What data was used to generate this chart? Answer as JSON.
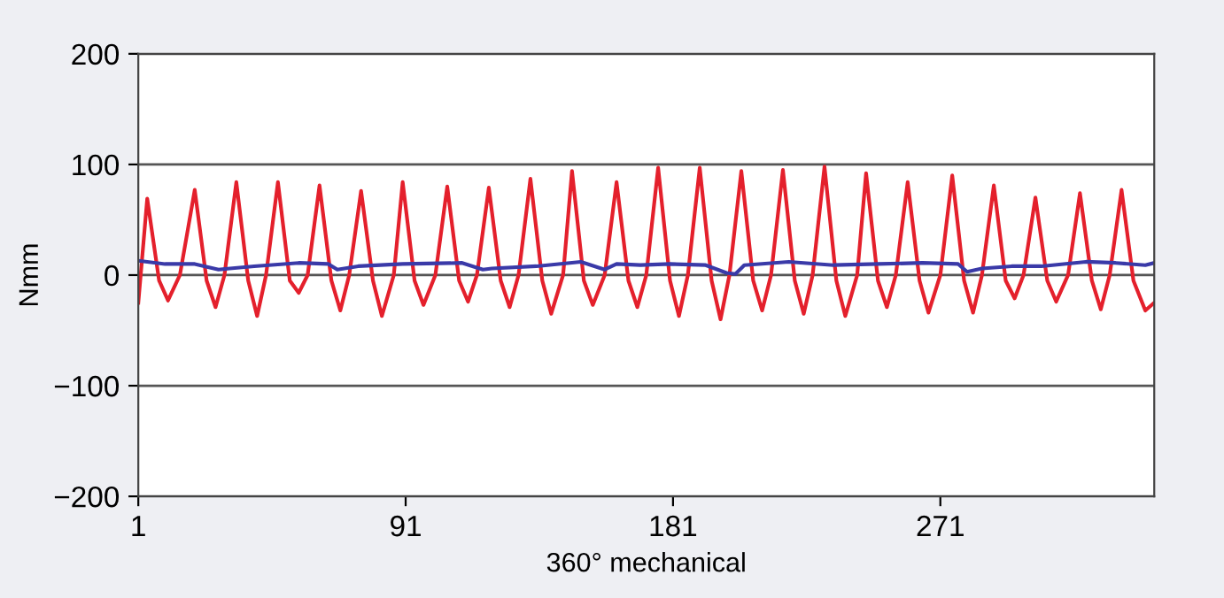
{
  "chart_data": {
    "type": "line",
    "xlabel": "360° mechanical",
    "ylabel": "Nmm",
    "xlim": [
      1,
      343
    ],
    "ylim": [
      -200,
      200
    ],
    "xticks": [
      1,
      91,
      181,
      271
    ],
    "yticks": [
      {
        "value": -200,
        "label": "−200"
      },
      {
        "value": -100,
        "label": "−100"
      },
      0,
      100,
      200
    ],
    "grid": "y",
    "marker": "none",
    "line_style": "solid",
    "series": [
      {
        "color": "#e4202c",
        "x": [
          1,
          4,
          8,
          11,
          15,
          20,
          24,
          27,
          30,
          34,
          38,
          41,
          44,
          48,
          52,
          55,
          58,
          62,
          66,
          69,
          72,
          76,
          80,
          83,
          87,
          90,
          94,
          97,
          101,
          105,
          109,
          112,
          115,
          119,
          123,
          126,
          129,
          133,
          137,
          140,
          144,
          147,
          151,
          154,
          158,
          162,
          166,
          169,
          172,
          176,
          180,
          183,
          186,
          190,
          194,
          197,
          200,
          204,
          208,
          211,
          214,
          218,
          222,
          225,
          228,
          232,
          236,
          239,
          243,
          246,
          250,
          253,
          256,
          260,
          264,
          267,
          271,
          275,
          279,
          282,
          285,
          289,
          293,
          296,
          299,
          303,
          307,
          310,
          314,
          318,
          322,
          325,
          328,
          332,
          336,
          340,
          343
        ],
        "values": [
          -25,
          69,
          -5,
          -23,
          0,
          77,
          -5,
          -29,
          0,
          84,
          -5,
          -37,
          0,
          84,
          -5,
          -16,
          0,
          81,
          -5,
          -32,
          0,
          76,
          -5,
          -37,
          0,
          84,
          -5,
          -27,
          0,
          80,
          -5,
          -24,
          0,
          79,
          -5,
          -29,
          0,
          87,
          -5,
          -35,
          0,
          94,
          -5,
          -27,
          0,
          84,
          -5,
          -29,
          0,
          97,
          -5,
          -37,
          0,
          97,
          -5,
          -40,
          0,
          94,
          -5,
          -32,
          0,
          95,
          -5,
          -35,
          0,
          98,
          -5,
          -37,
          0,
          92,
          -5,
          -29,
          0,
          84,
          -5,
          -34,
          0,
          90,
          -5,
          -34,
          0,
          81,
          -5,
          -21,
          0,
          70,
          -5,
          -24,
          0,
          74,
          -5,
          -31,
          0,
          77,
          -5,
          -32,
          -25
        ]
      },
      {
        "color": "#3a3aa8",
        "x": [
          1,
          10,
          20,
          28,
          40,
          55,
          65,
          68,
          75,
          90,
          110,
          117,
          120,
          135,
          150,
          158,
          162,
          170,
          180,
          192,
          199,
          202,
          205,
          220,
          235,
          250,
          265,
          277,
          280,
          285,
          295,
          305,
          320,
          330,
          340,
          343
        ],
        "values": [
          13,
          10,
          10,
          5,
          8,
          11,
          10,
          5,
          8,
          10,
          11,
          5,
          6,
          8,
          12,
          5,
          10,
          9,
          10,
          9,
          2,
          1,
          9,
          12,
          9,
          10,
          11,
          10,
          3,
          6,
          8,
          8,
          12,
          11,
          9,
          11
        ]
      }
    ]
  }
}
